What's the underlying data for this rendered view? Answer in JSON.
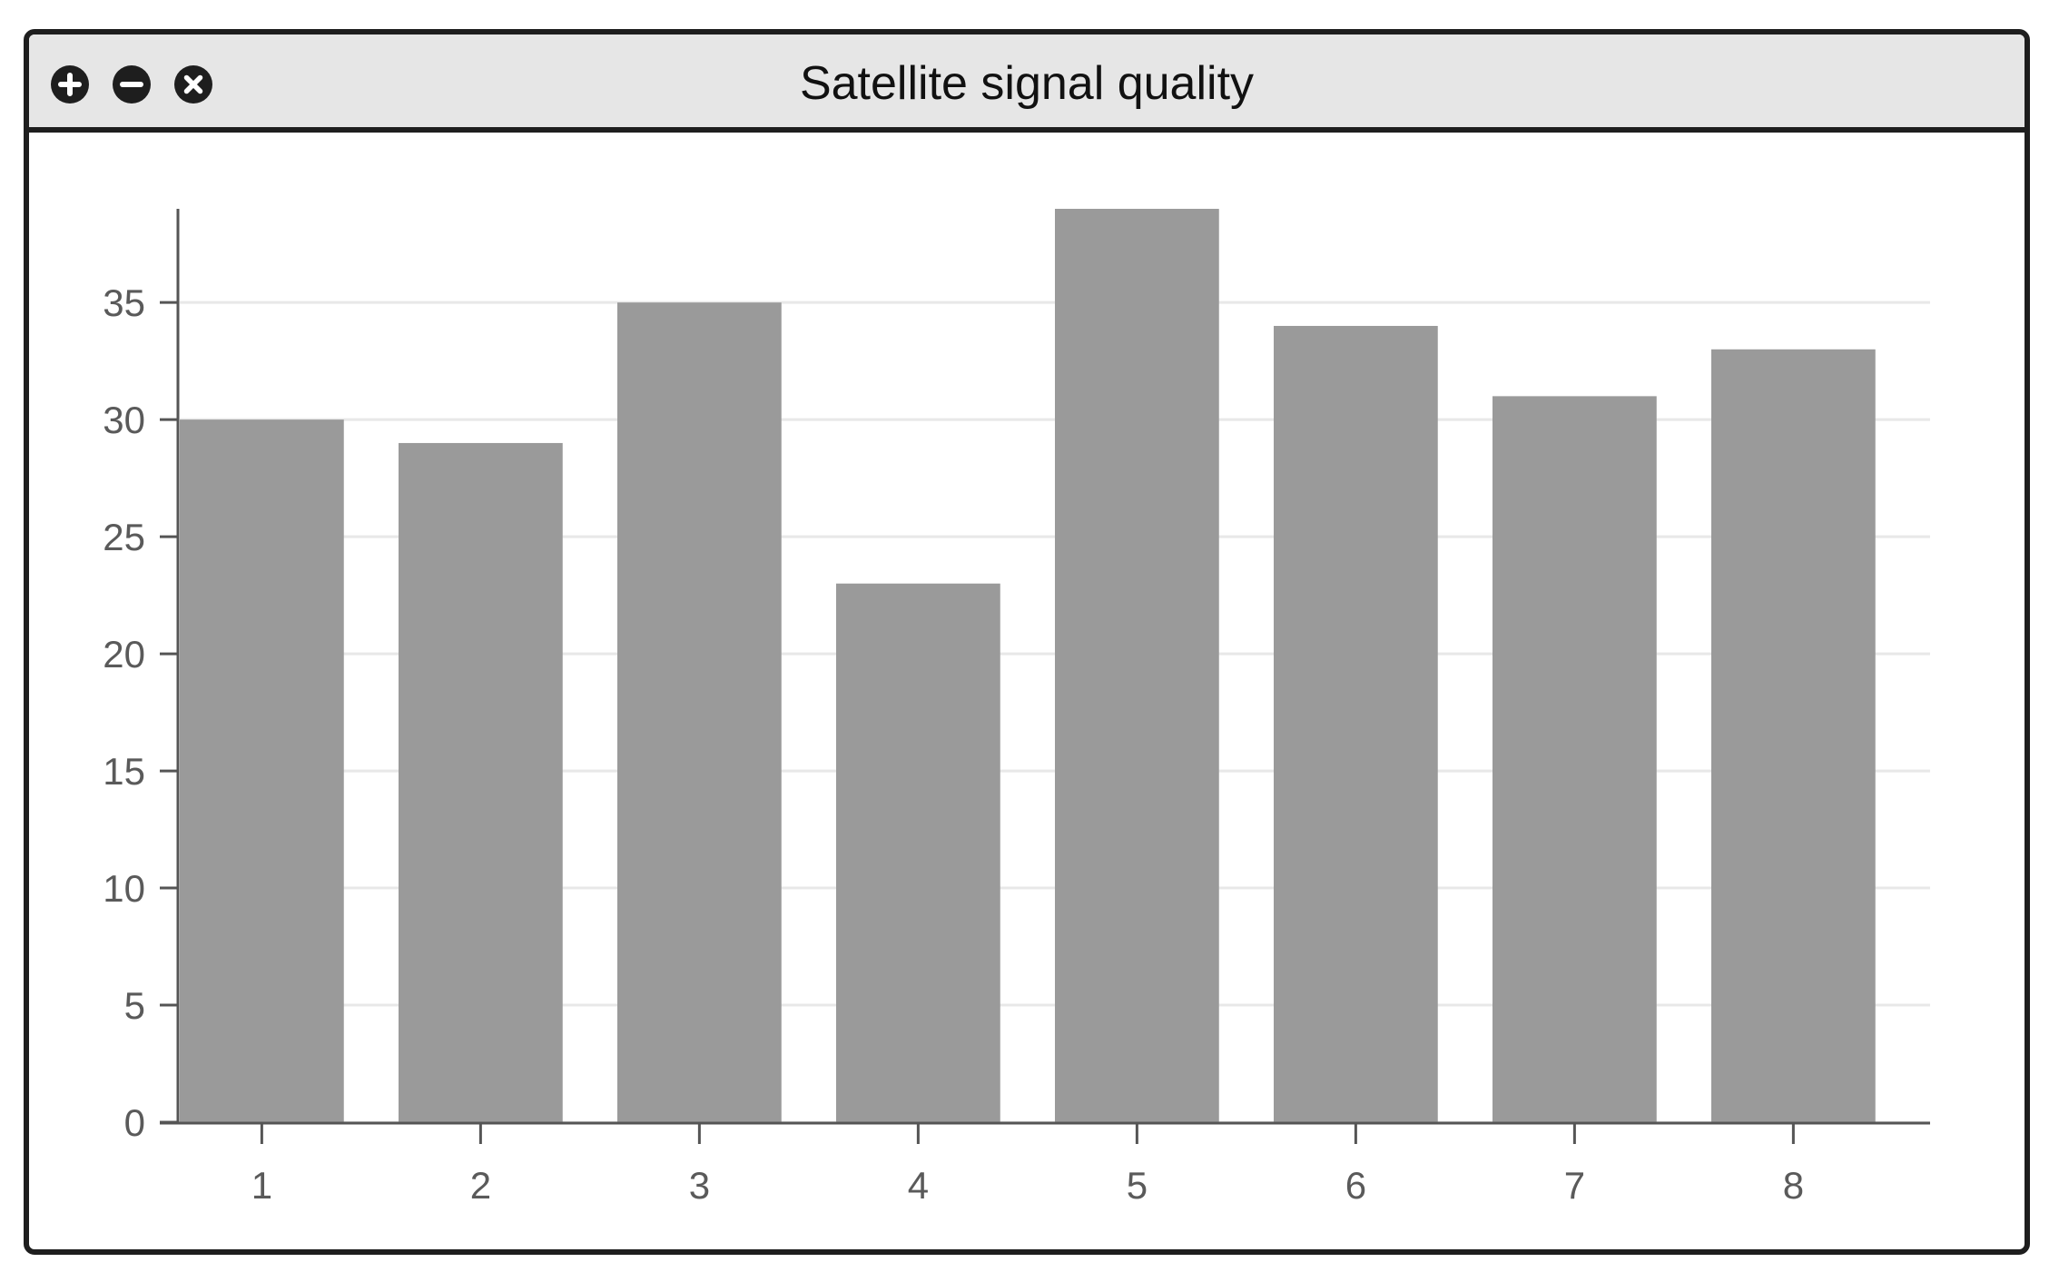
{
  "window": {
    "title": "Satellite signal quality",
    "controls": [
      {
        "name": "zoom-in-icon",
        "icon": "plus-circle"
      },
      {
        "name": "zoom-out-icon",
        "icon": "minus-circle"
      },
      {
        "name": "close-icon",
        "icon": "x-circle"
      }
    ]
  },
  "chart_data": {
    "type": "bar",
    "title": "",
    "xlabel": "",
    "ylabel": "",
    "categories": [
      "1",
      "2",
      "3",
      "4",
      "5",
      "6",
      "7",
      "8"
    ],
    "values": [
      30,
      29,
      35,
      23,
      39,
      34,
      31,
      33
    ],
    "ylim": [
      0,
      39
    ],
    "yticks": [
      0,
      5,
      10,
      15,
      20,
      25,
      30,
      35
    ],
    "grid": true,
    "legend": "none",
    "colors": {
      "bar": "#9a9a9a",
      "grid": "#e8e8e8",
      "axis": "#555555"
    }
  }
}
